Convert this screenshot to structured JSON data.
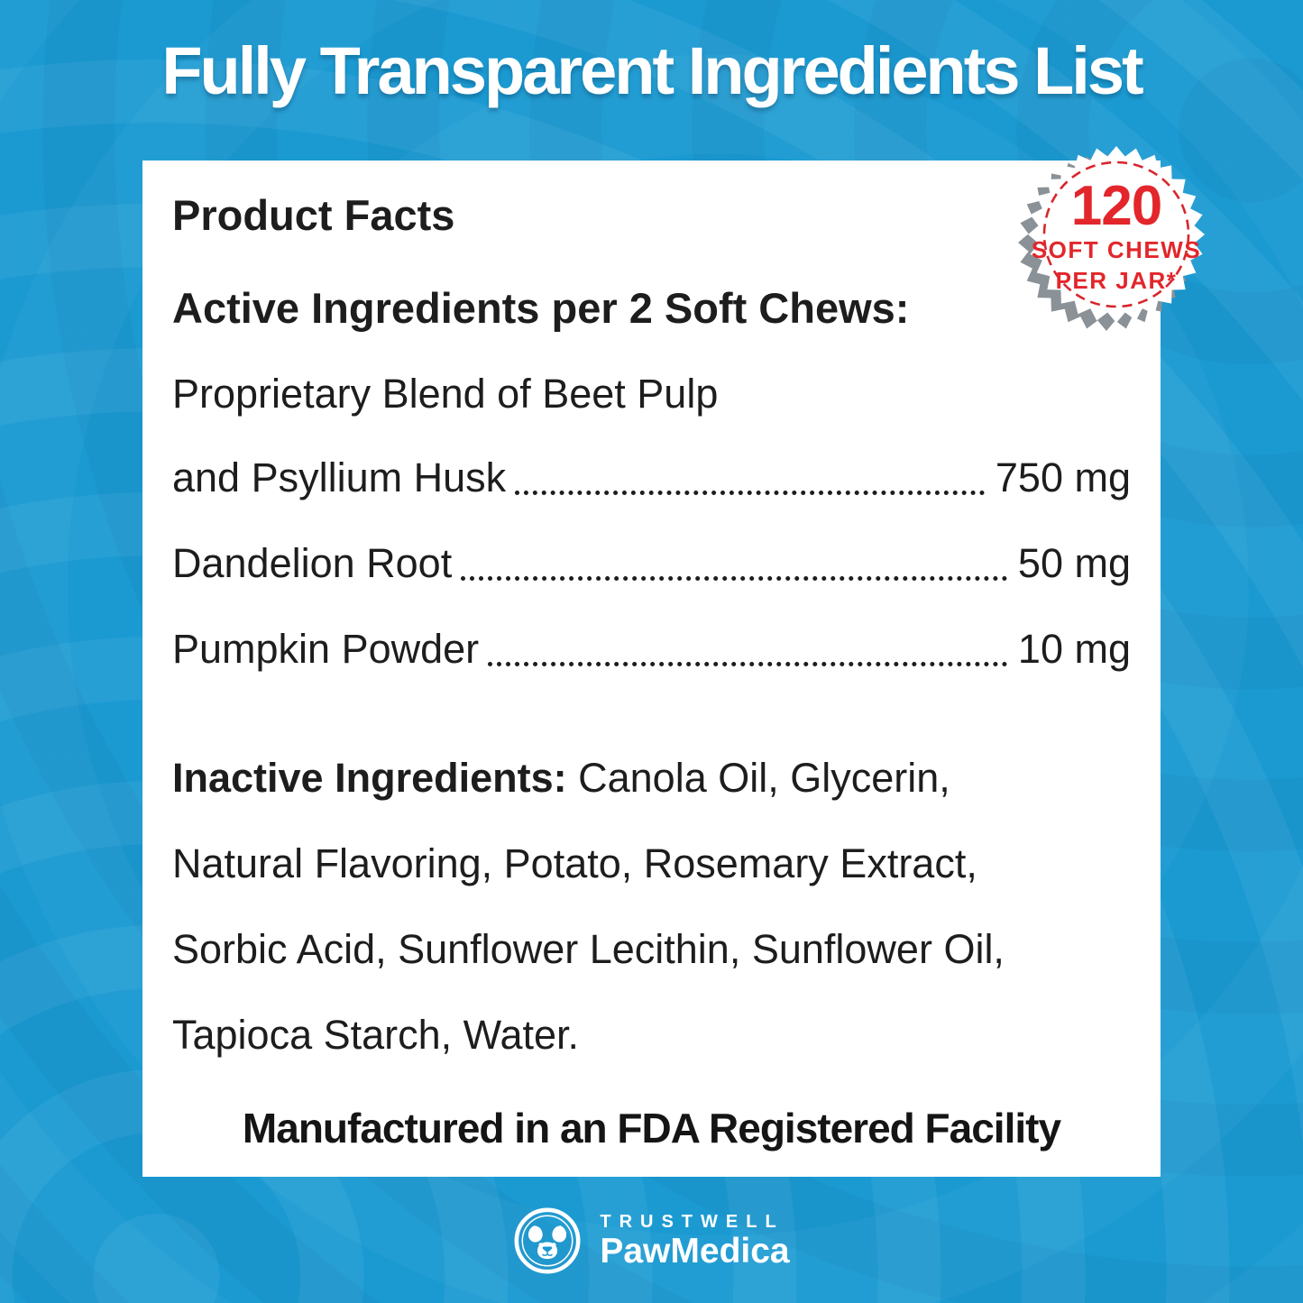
{
  "page": {
    "title": "Fully Transparent Ingredients List"
  },
  "badge": {
    "count": "120",
    "line1": "SOFT CHEWS",
    "line2": "PER JAR*"
  },
  "panel": {
    "heading": "Product Facts",
    "active_heading": "Active Ingredients per 2 Soft Chews:",
    "active_ingredients": [
      {
        "name": "Proprietary Blend of Beet Pulp",
        "value": ""
      },
      {
        "name": "and Psyllium Husk",
        "value": "750 mg"
      },
      {
        "name": "Dandelion Root",
        "value": "50 mg"
      },
      {
        "name": "Pumpkin Powder",
        "value": "10 mg"
      }
    ],
    "inactive_lines": [
      {
        "bold": "Inactive Ingredients:",
        "text": " Canola Oil, Glycerin,"
      },
      {
        "bold": "",
        "text": "Natural Flavoring, Potato, Rosemary Extract,"
      },
      {
        "bold": "",
        "text": "Sorbic Acid, Sunflower Lecithin, Sunflower Oil,"
      },
      {
        "bold": "",
        "text": "Tapioca Starch, Water."
      }
    ],
    "footer": "Manufactured in an FDA Registered Facility"
  },
  "logo": {
    "brand_top": "TRUSTWELL",
    "brand_bottom": "PawMedica"
  },
  "colors": {
    "background_blue": "#1b9ad2",
    "card_white": "#ffffff",
    "text_dark": "#1d1d1d",
    "badge_red": "#e2262b",
    "badge_shadow_gray": "#8a9298"
  }
}
